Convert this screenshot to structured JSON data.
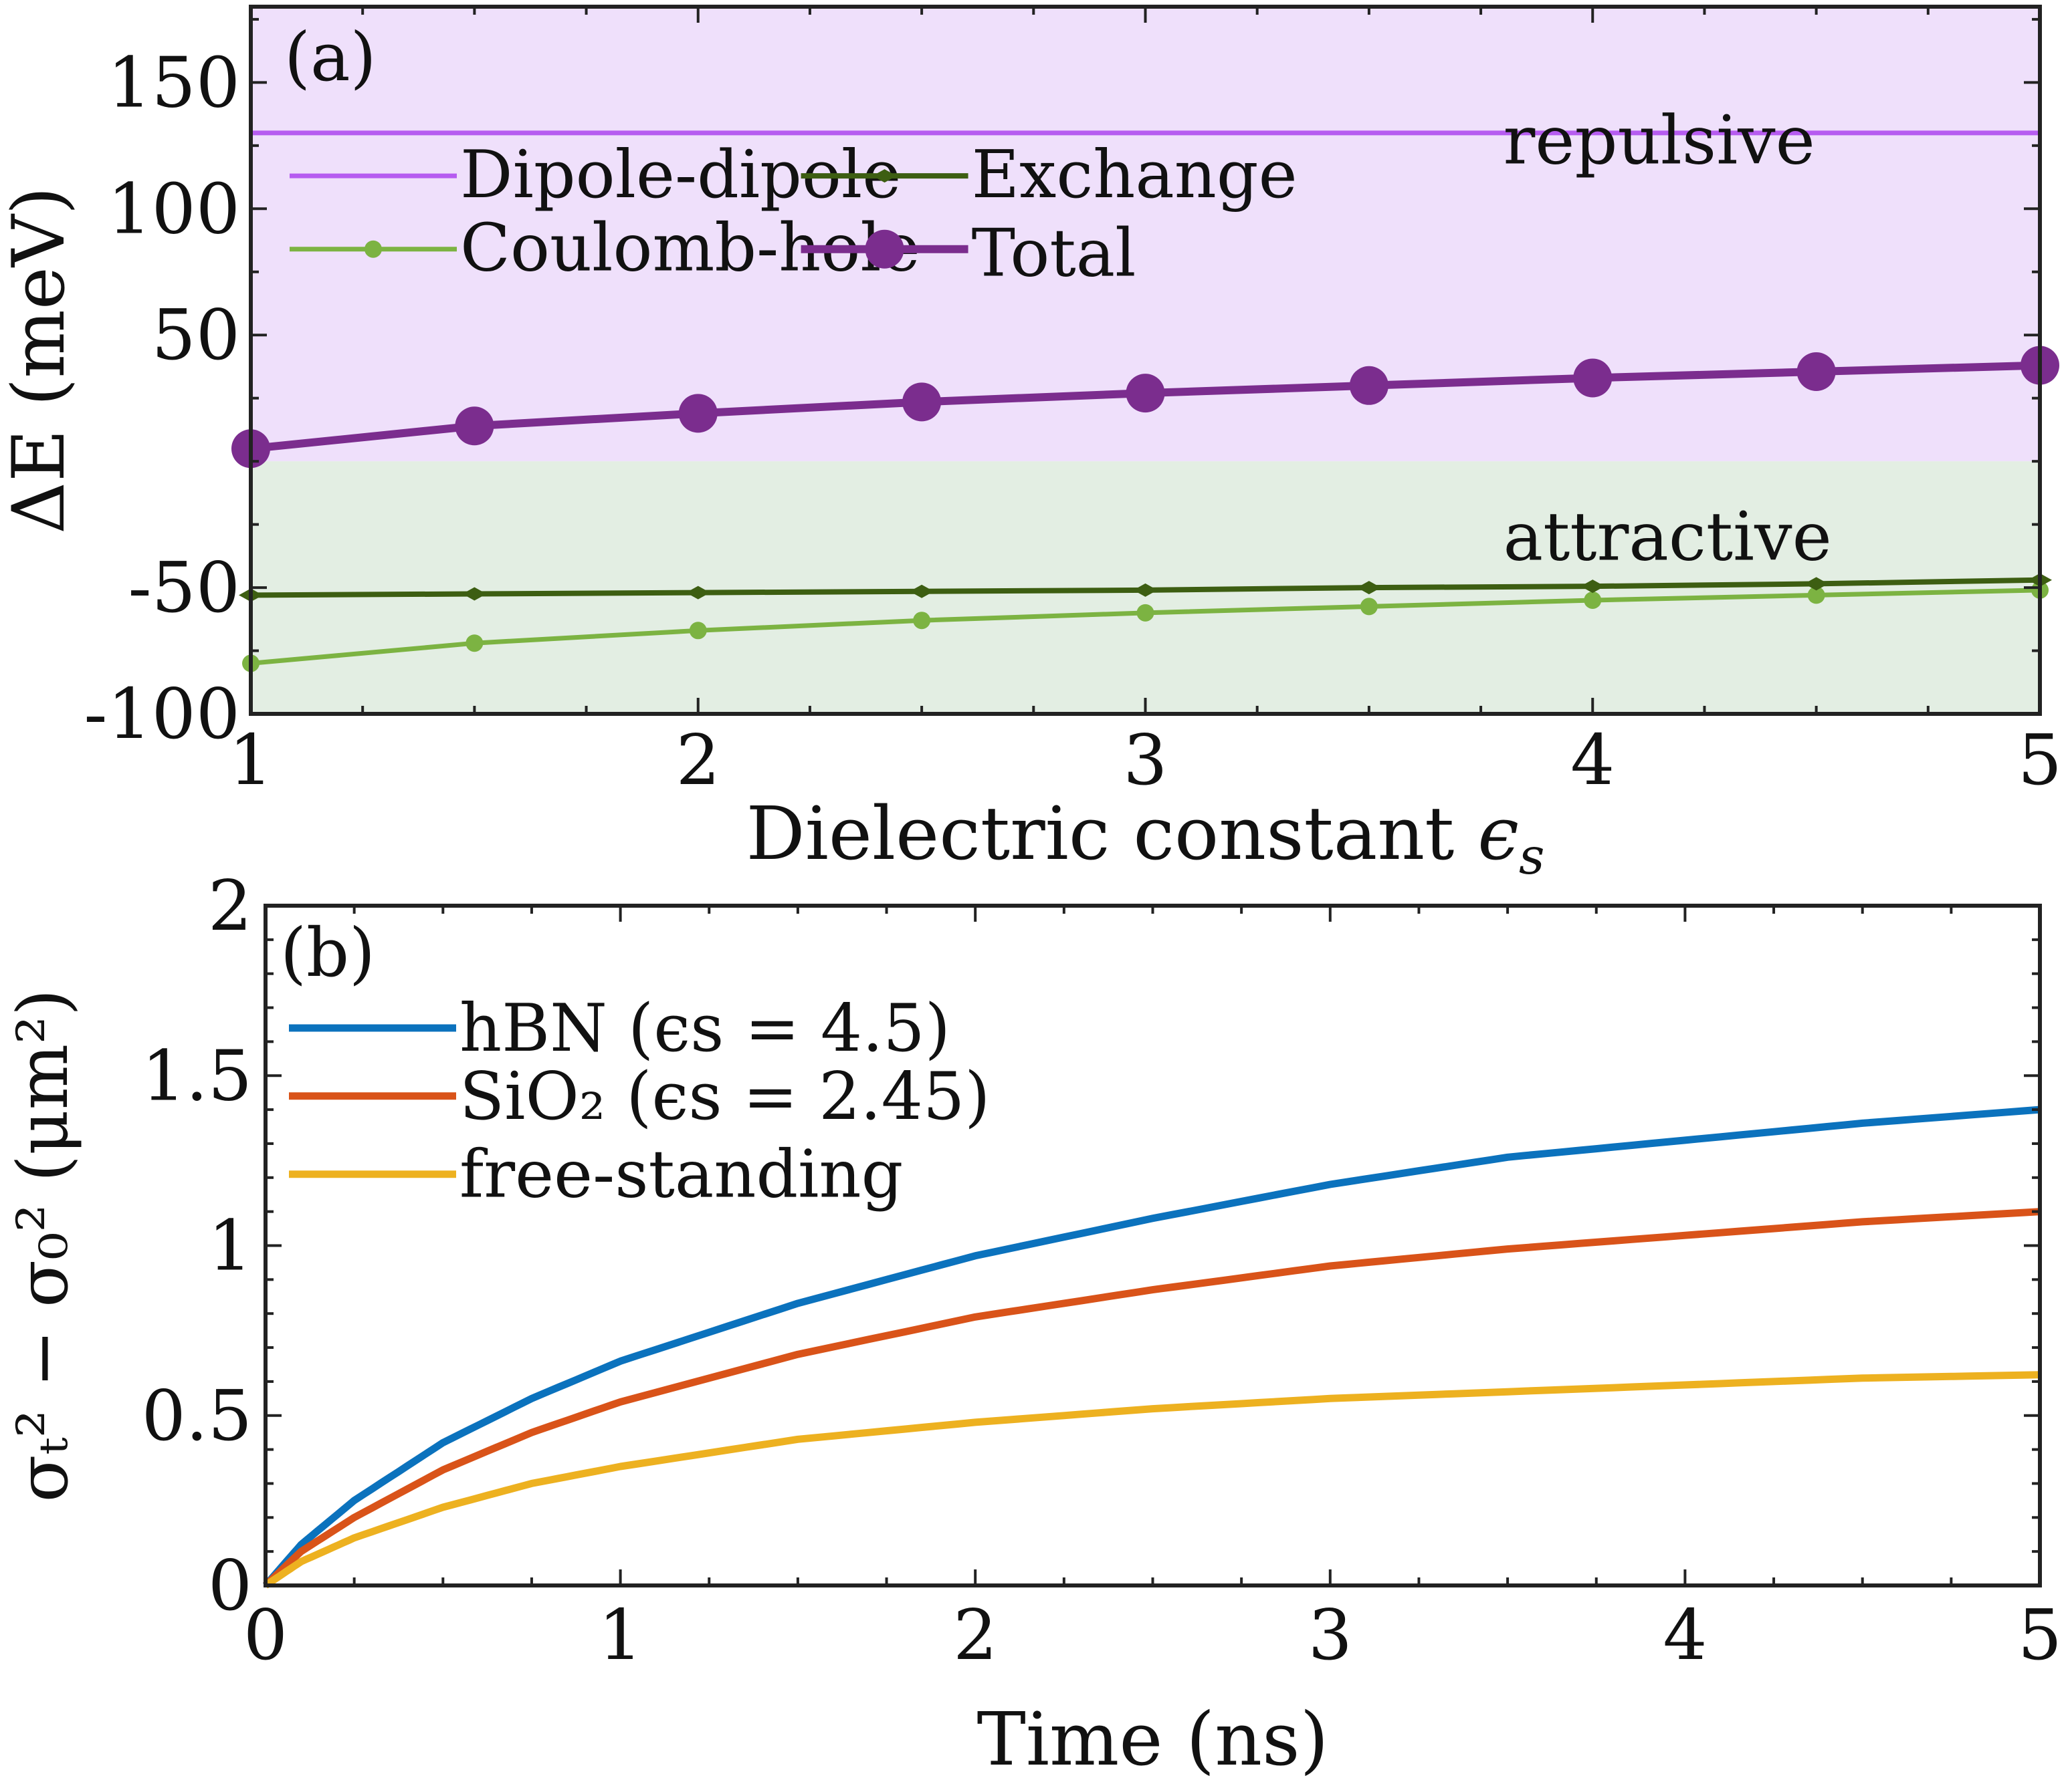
{
  "chart_data": [
    {
      "panel_label": "(a)",
      "type": "line",
      "xlabel": "Dielectric constant",
      "xlabel_symbol": "ϵ",
      "xlabel_subscript": "s",
      "ylabel": "ΔE (meV)",
      "xlim": [
        1,
        5
      ],
      "ylim": [
        -100,
        180
      ],
      "xticks": [
        1,
        2,
        3,
        4,
        5
      ],
      "yticks": [
        -100,
        -50,
        50,
        100,
        150
      ],
      "regions": [
        {
          "name": "repulsive",
          "label": "repulsive",
          "y_range": [
            0,
            180
          ],
          "color": "#efe0fb"
        },
        {
          "name": "attractive",
          "label": "attractive",
          "y_range": [
            -100,
            0
          ],
          "color": "#e3eee3"
        }
      ],
      "x": [
        1,
        1.5,
        2,
        2.5,
        3,
        3.5,
        4,
        4.5,
        5
      ],
      "series": [
        {
          "name": "Dipole-dipole",
          "color": "#b65cf0",
          "marker": "none",
          "values": [
            130,
            130,
            130,
            130,
            130,
            130,
            130,
            130,
            130
          ]
        },
        {
          "name": "Exchange",
          "color": "#3d5e12",
          "marker": "diamond",
          "values": [
            -53,
            -52.5,
            -52,
            -51.5,
            -51,
            -50,
            -49.5,
            -48.5,
            -47
          ]
        },
        {
          "name": "Coulomb-hole",
          "color": "#7cb342",
          "marker": "circle",
          "values": [
            -80,
            -72,
            -67,
            -63,
            -60,
            -57.5,
            -55,
            -53,
            -51
          ]
        },
        {
          "name": "Total",
          "color": "#7b2d8e",
          "marker": "big-circle",
          "values": [
            5,
            14,
            19,
            23.5,
            27,
            30,
            33,
            35.5,
            38
          ]
        }
      ]
    },
    {
      "panel_label": "(b)",
      "type": "line",
      "xlabel": "Time (ns)",
      "ylabel": "σₜ² − σ₀² (μm²)",
      "xlim": [
        0,
        5
      ],
      "ylim": [
        0,
        2
      ],
      "xticks": [
        0,
        1,
        2,
        3,
        4,
        5
      ],
      "yticks": [
        0,
        0.5,
        1,
        1.5,
        2
      ],
      "ytick_labels": [
        "0",
        "0.5",
        "1",
        "1.5",
        "2"
      ],
      "x": [
        0,
        0.1,
        0.25,
        0.5,
        0.75,
        1,
        1.5,
        2,
        2.5,
        3,
        3.5,
        4,
        4.5,
        5
      ],
      "series": [
        {
          "name": "hBN",
          "label_paren": "(ϵs = 4.5)",
          "color": "#0b72bd",
          "values": [
            0,
            0.12,
            0.25,
            0.42,
            0.55,
            0.66,
            0.83,
            0.97,
            1.08,
            1.18,
            1.26,
            1.31,
            1.36,
            1.4
          ]
        },
        {
          "name": "SiO₂",
          "label_paren": "(ϵs = 2.45)",
          "color": "#d95319",
          "values": [
            0,
            0.1,
            0.2,
            0.34,
            0.45,
            0.54,
            0.68,
            0.79,
            0.87,
            0.94,
            0.99,
            1.03,
            1.07,
            1.1
          ]
        },
        {
          "name": "free-standing",
          "label_paren": "",
          "color": "#edb120",
          "values": [
            0,
            0.07,
            0.14,
            0.23,
            0.3,
            0.35,
            0.43,
            0.48,
            0.52,
            0.55,
            0.57,
            0.59,
            0.61,
            0.62
          ]
        }
      ]
    }
  ]
}
